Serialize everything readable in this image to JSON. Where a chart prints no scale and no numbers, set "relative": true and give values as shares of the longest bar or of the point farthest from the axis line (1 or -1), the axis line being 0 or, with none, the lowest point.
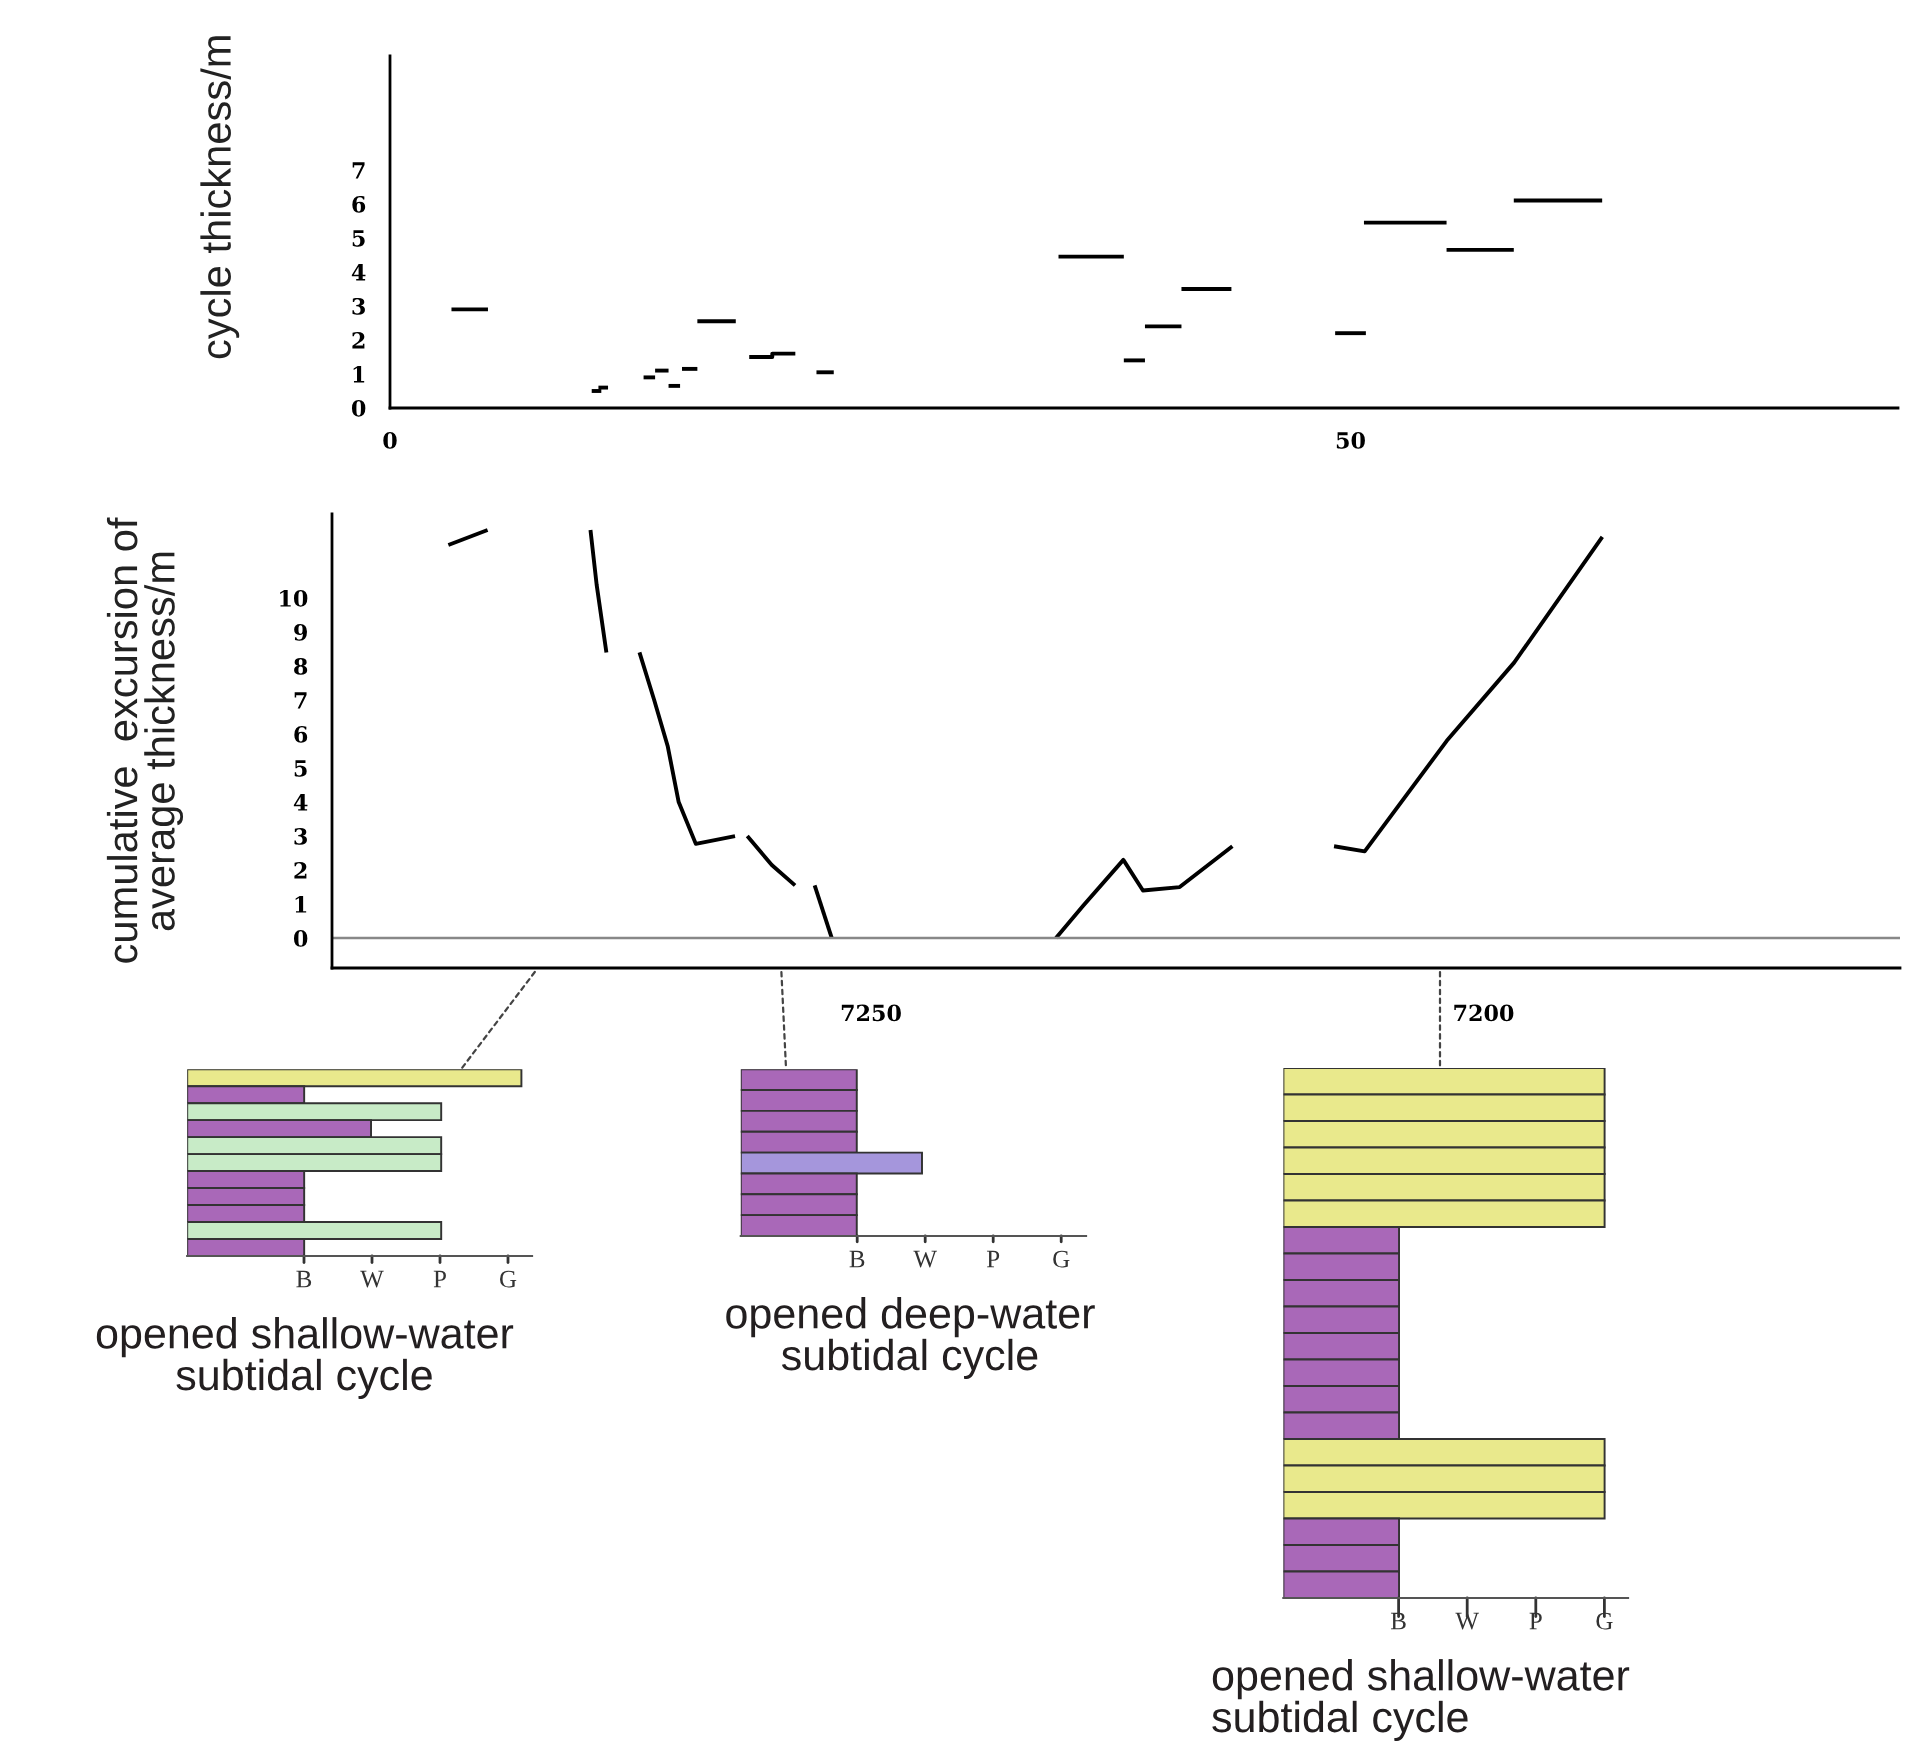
{
  "chart_data": [
    {
      "type": "line",
      "ylabel": "cycle thickness/m",
      "xlim": [
        0,
        78.5
      ],
      "ylim": [
        0,
        10.35
      ],
      "xticks": [
        0,
        50
      ],
      "yticks": [
        0,
        1,
        2,
        3,
        4,
        5,
        6,
        7
      ],
      "grid": false,
      "legend": false,
      "marker": "none",
      "series": [
        {
          "color": "#000000",
          "x": [
            3.2,
            5.1
          ],
          "values": [
            2.9,
            2.9
          ]
        },
        {
          "color": "#000000",
          "x": [
            10.5,
            11.0
          ],
          "values": [
            0.5,
            0.5
          ]
        },
        {
          "color": "#000000",
          "x": [
            10.85,
            11.35
          ],
          "values": [
            0.6,
            0.6
          ]
        },
        {
          "color": "#000000",
          "x": [
            13.2,
            13.8
          ],
          "values": [
            0.9,
            0.9
          ]
        },
        {
          "color": "#000000",
          "x": [
            13.8,
            14.5
          ],
          "values": [
            1.1,
            1.1
          ]
        },
        {
          "color": "#000000",
          "x": [
            14.5,
            15.1
          ],
          "values": [
            0.65,
            0.65
          ]
        },
        {
          "color": "#000000",
          "x": [
            15.2,
            16.0
          ],
          "values": [
            1.15,
            1.15
          ]
        },
        {
          "color": "#000000",
          "x": [
            16.0,
            18.0
          ],
          "values": [
            2.55,
            2.55
          ]
        },
        {
          "color": "#000000",
          "x": [
            18.7,
            19.9,
            19.9,
            21.1
          ],
          "values": [
            1.5,
            1.5,
            1.6,
            1.6
          ]
        },
        {
          "color": "#000000",
          "x": [
            22.2,
            23.1
          ],
          "values": [
            1.05,
            1.05
          ]
        },
        {
          "color": "#000000",
          "x": [
            34.8,
            38.2
          ],
          "values": [
            4.45,
            4.45
          ]
        },
        {
          "color": "#000000",
          "x": [
            38.2,
            39.3
          ],
          "values": [
            1.4,
            1.4
          ]
        },
        {
          "color": "#000000",
          "x": [
            39.3,
            41.2
          ],
          "values": [
            2.4,
            2.4
          ]
        },
        {
          "color": "#000000",
          "x": [
            41.2,
            43.8
          ],
          "values": [
            3.5,
            3.5
          ]
        },
        {
          "color": "#000000",
          "x": [
            49.2,
            50.8
          ],
          "values": [
            2.2,
            2.2
          ]
        },
        {
          "color": "#000000",
          "x": [
            50.7,
            55.0
          ],
          "values": [
            5.45,
            5.45
          ]
        },
        {
          "color": "#000000",
          "x": [
            55.0,
            58.5
          ],
          "values": [
            4.65,
            4.65
          ]
        },
        {
          "color": "#000000",
          "x": [
            58.5,
            63.1
          ],
          "values": [
            6.1,
            6.1
          ]
        }
      ]
    },
    {
      "type": "line",
      "ylabel": "cumulative  excursion of\naverage thickness/m",
      "xlim": [
        7294,
        7166
      ],
      "ylim": [
        -0.88,
        12.47
      ],
      "xticks": [
        7250,
        7200
      ],
      "yticks": [
        0,
        1,
        2,
        3,
        4,
        5,
        6,
        7,
        8,
        9,
        10
      ],
      "grid": false,
      "legend": false,
      "marker": "none",
      "ref_lines": [
        {
          "axis": "y",
          "value": 0,
          "color": "#888888"
        }
      ],
      "series": [
        {
          "color": "#000000",
          "x": [
            7284.5,
            7281.3
          ],
          "values": [
            11.56,
            12.0
          ]
        },
        {
          "color": "#000000",
          "x": [
            7272.9,
            7272.4,
            7271.6
          ],
          "values": [
            12.0,
            10.4,
            8.4
          ]
        },
        {
          "color": "#000000",
          "x": [
            7268.9,
            7267.7,
            7266.6,
            7265.7,
            7264.3,
            7261.1
          ],
          "values": [
            8.4,
            7.0,
            5.65,
            4.0,
            2.77,
            3.0
          ]
        },
        {
          "color": "#000000",
          "x": [
            7260.1,
            7258.1,
            7256.2
          ],
          "values": [
            3.0,
            2.15,
            1.55
          ]
        },
        {
          "color": "#000000",
          "x": [
            7254.6,
            7253.2
          ],
          "values": [
            1.55,
            0
          ]
        },
        {
          "color": "#000000",
          "x": [
            7234.9,
            7232.7,
            7229.4,
            7227.8,
            7224.8,
            7220.5
          ],
          "values": [
            0,
            0.94,
            2.3,
            1.4,
            1.5,
            2.7
          ]
        },
        {
          "color": "#000000",
          "x": [
            7212.2,
            7209.7,
            7203.0,
            7197.5,
            7190.3
          ],
          "values": [
            2.7,
            2.55,
            5.8,
            8.1,
            11.8
          ]
        }
      ]
    },
    {
      "type": "bar",
      "orientation": "horizontal",
      "relative": true,
      "title": "opened shallow-water\nsubtidal cycle",
      "annotations": [
        "B",
        "W",
        "P",
        "G"
      ],
      "categories": [
        null,
        null,
        null,
        null,
        null,
        null,
        null,
        null,
        null,
        null,
        null
      ],
      "values": [
        1,
        0.35,
        0.76,
        0.55,
        0.76,
        0.76,
        0.35,
        0.35,
        0.35,
        0.76,
        0.35
      ],
      "colors": [
        "#e9e98c",
        "#a968b8",
        "#c8ebc7",
        "#a968b8",
        "#c8ebc7",
        "#c8ebc7",
        "#a968b8",
        "#a968b8",
        "#a968b8",
        "#c8ebc7",
        "#a968b8"
      ]
    },
    {
      "type": "bar",
      "orientation": "horizontal",
      "relative": true,
      "title": "opened deep-water\nsubtidal cycle",
      "annotations": [
        "B",
        "W",
        "P",
        "G"
      ],
      "categories": [
        null,
        null,
        null,
        null,
        null,
        null,
        null,
        null
      ],
      "values": [
        0.64,
        0.64,
        0.64,
        0.64,
        1,
        0.64,
        0.64,
        0.64
      ],
      "colors": [
        "#a968b8",
        "#a968b8",
        "#a968b8",
        "#a968b8",
        "#a596dc",
        "#a968b8",
        "#a968b8",
        "#a968b8"
      ]
    },
    {
      "type": "bar",
      "orientation": "horizontal",
      "relative": true,
      "title": "opened shallow-water\nsubtidal cycle",
      "annotations": [
        "B",
        "W",
        "P",
        "G"
      ],
      "categories": [
        null,
        null,
        null,
        null,
        null,
        null,
        null,
        null,
        null,
        null,
        null,
        null,
        null,
        null,
        null,
        null,
        null,
        null,
        null,
        null
      ],
      "values": [
        1,
        1,
        1,
        1,
        1,
        1,
        0.36,
        0.36,
        0.36,
        0.36,
        0.36,
        0.36,
        0.36,
        0.36,
        1,
        1,
        1,
        0.36,
        0.36,
        0.36
      ],
      "colors": [
        "#e9e98c",
        "#e9e98c",
        "#e9e98c",
        "#e9e98c",
        "#e9e98c",
        "#e9e98c",
        "#a968b8",
        "#a968b8",
        "#a968b8",
        "#a968b8",
        "#a968b8",
        "#a968b8",
        "#a968b8",
        "#a968b8",
        "#e9e98c",
        "#e9e98c",
        "#e9e98c",
        "#a968b8",
        "#a968b8",
        "#a968b8"
      ]
    }
  ]
}
